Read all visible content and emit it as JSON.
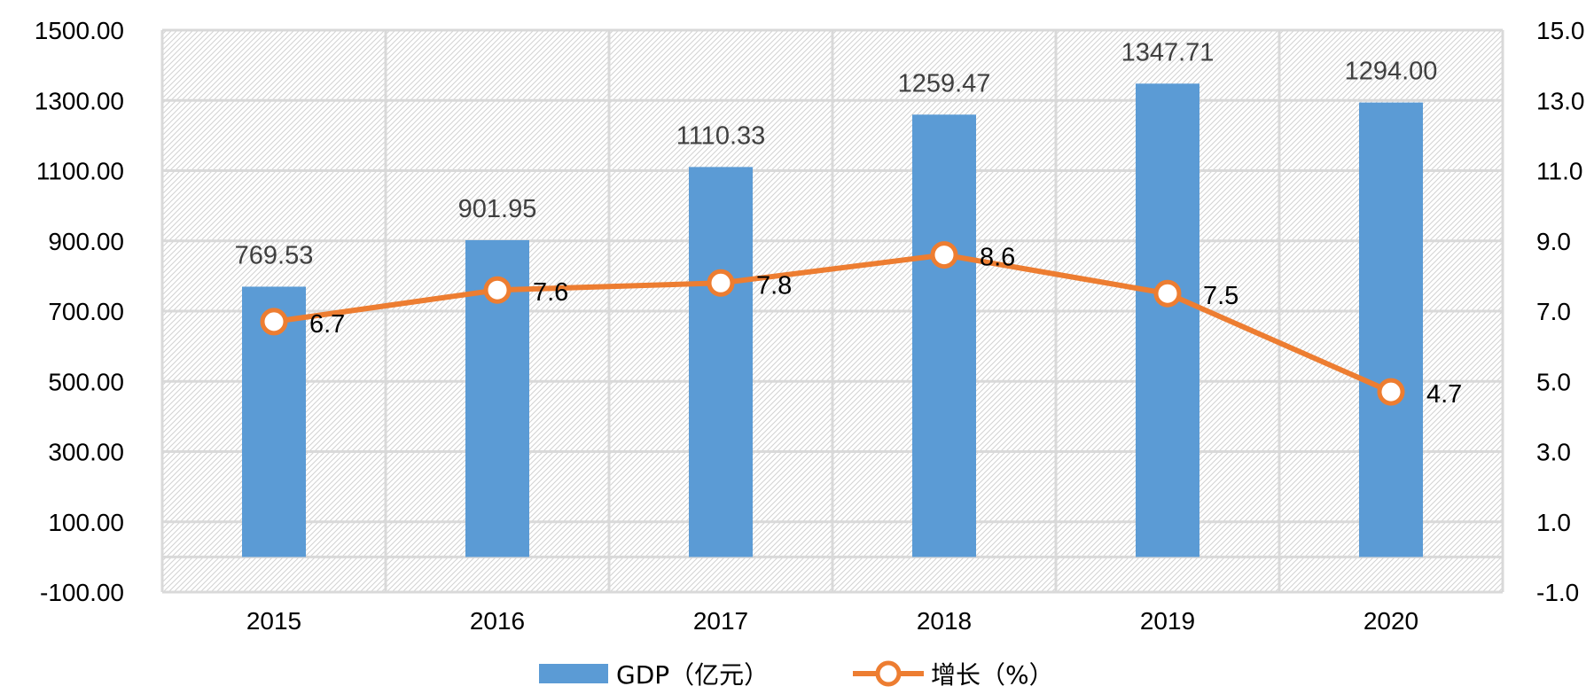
{
  "chart_data": {
    "type": "bar",
    "categories": [
      "2015",
      "2016",
      "2017",
      "2018",
      "2019",
      "2020"
    ],
    "series": [
      {
        "name": "GDP（亿元）",
        "type": "bar",
        "axis": "left",
        "values": [
          769.53,
          901.95,
          1110.33,
          1259.47,
          1347.71,
          1294.0
        ],
        "labels": [
          "769.53",
          "901.95",
          "1110.33",
          "1259.47",
          "1347.71",
          "1294.00"
        ],
        "color": "#5B9BD5"
      },
      {
        "name": "增长（%）",
        "type": "line",
        "axis": "right",
        "values": [
          6.7,
          7.6,
          7.8,
          8.6,
          7.5,
          4.7
        ],
        "labels": [
          "6.7",
          "7.6",
          "7.8",
          "8.6",
          "7.5",
          "4.7"
        ],
        "color": "#ED7D31"
      }
    ],
    "left_axis": {
      "ylim": [
        -100,
        1500
      ],
      "ticks": [
        "-100.00",
        "100.00",
        "300.00",
        "500.00",
        "700.00",
        "900.00",
        "1100.00",
        "1300.00",
        "1500.00"
      ]
    },
    "right_axis": {
      "ylim": [
        -1,
        15
      ],
      "ticks": [
        "-1.0",
        "1.0",
        "3.0",
        "5.0",
        "7.0",
        "9.0",
        "11.0",
        "13.0",
        "15.0"
      ]
    },
    "grid": true,
    "legend": "bottom-center",
    "colors": {
      "bar": "#5B9BD5",
      "line": "#ED7D31",
      "grid": "#D9D9D9",
      "hatch": "#D0D0D0"
    }
  }
}
